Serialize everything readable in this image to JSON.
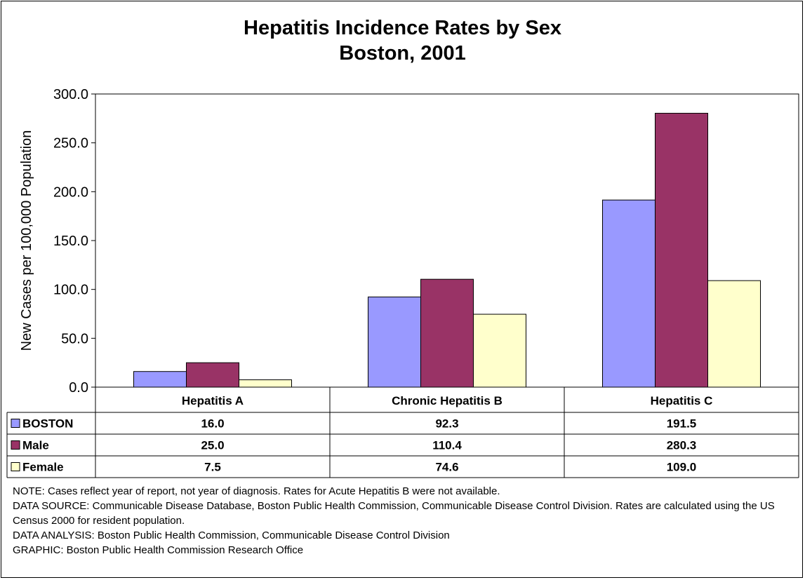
{
  "chart_data": {
    "type": "bar",
    "title": "Hepatitis Incidence Rates by Sex",
    "subtitle": "Boston, 2001",
    "ylabel": "New Cases per 100,000 Population",
    "xlabel": "",
    "ylim": [
      0,
      300
    ],
    "yticks": [
      "0.0",
      "50.0",
      "100.0",
      "150.0",
      "200.0",
      "250.0",
      "300.0"
    ],
    "categories": [
      "Hepatitis A",
      "Chronic Hepatitis B",
      "Hepatitis C"
    ],
    "series": [
      {
        "name": "BOSTON",
        "color": "#9999ff",
        "values": [
          16.0,
          92.3,
          191.5
        ],
        "labels": [
          "16.0",
          "92.3",
          "191.5"
        ]
      },
      {
        "name": "Male",
        "color": "#993366",
        "values": [
          25.0,
          110.4,
          280.3
        ],
        "labels": [
          "25.0",
          "110.4",
          "280.3"
        ]
      },
      {
        "name": "Female",
        "color": "#ffffcc",
        "values": [
          7.5,
          74.6,
          109.0
        ],
        "labels": [
          "7.5",
          "74.6",
          "109.0"
        ]
      }
    ],
    "grid": false,
    "legend": "data-table"
  },
  "notes": {
    "note": "NOTE:  Cases reflect year of report, not year of diagnosis.  Rates for Acute Hepatitis B were not available.",
    "source": "DATA SOURCE:  Communicable Disease Database, Boston Public Health Commission, Communicable Disease Control Division. Rates are calculated using the US Census 2000 for resident population.",
    "analysis": "DATA ANALYSIS:  Boston Public Health Commission, Communicable Disease Control Division",
    "graphic": "GRAPHIC:  Boston Public Health Commission Research Office"
  }
}
